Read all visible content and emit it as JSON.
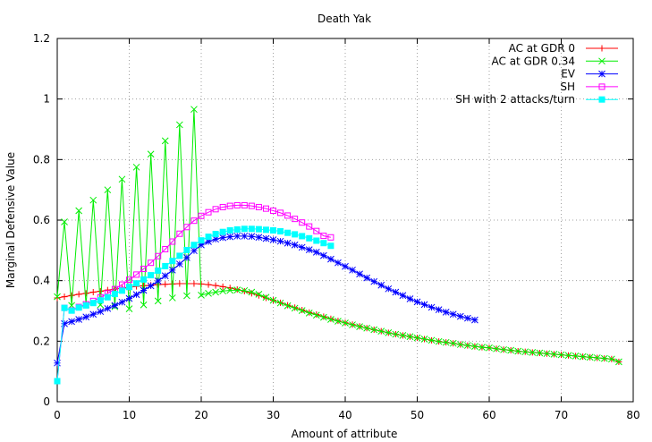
{
  "chart_data": {
    "type": "line",
    "title": "Death Yak",
    "xlabel": "Amount of attribute",
    "ylabel": "Marginal Defensive Value",
    "xlim": [
      0,
      80
    ],
    "ylim": [
      0,
      1.2
    ],
    "xticks": [
      "0",
      "10",
      "20",
      "30",
      "40",
      "50",
      "60",
      "70",
      "80"
    ],
    "yticks": [
      "0",
      "0.2",
      "0.4",
      "0.6",
      "0.8",
      "1",
      "1.2"
    ],
    "grid": true,
    "legend_position": "top-right",
    "series": [
      {
        "name": "AC at GDR 0",
        "color": "#ff0000",
        "marker": "plus",
        "x": [
          0,
          1,
          2,
          3,
          4,
          5,
          6,
          7,
          8,
          9,
          10,
          11,
          12,
          13,
          14,
          15,
          16,
          17,
          18,
          19,
          20,
          21,
          22,
          23,
          24,
          25,
          26,
          27,
          28,
          29,
          30,
          31,
          32,
          33,
          34,
          35,
          36,
          37,
          38,
          39,
          40,
          41,
          42,
          43,
          44,
          45,
          46,
          47,
          48,
          49,
          50,
          51,
          52,
          53,
          54,
          55,
          56,
          57,
          58,
          59,
          60,
          61,
          62,
          63,
          64,
          65,
          66,
          67,
          68,
          69,
          70,
          71,
          72,
          73,
          74,
          75,
          76,
          77,
          78
        ],
        "y": [
          0.343,
          0.347,
          0.351,
          0.355,
          0.358,
          0.362,
          0.365,
          0.369,
          0.372,
          0.375,
          0.378,
          0.381,
          0.383,
          0.385,
          0.387,
          0.388,
          0.389,
          0.39,
          0.39,
          0.39,
          0.389,
          0.387,
          0.384,
          0.38,
          0.376,
          0.371,
          0.365,
          0.358,
          0.351,
          0.343,
          0.335,
          0.327,
          0.319,
          0.311,
          0.303,
          0.295,
          0.288,
          0.281,
          0.274,
          0.267,
          0.261,
          0.255,
          0.249,
          0.243,
          0.238,
          0.233,
          0.228,
          0.223,
          0.219,
          0.215,
          0.211,
          0.207,
          0.203,
          0.199,
          0.196,
          0.193,
          0.189,
          0.186,
          0.183,
          0.18,
          0.178,
          0.175,
          0.172,
          0.17,
          0.167,
          0.165,
          0.163,
          0.161,
          0.159,
          0.157,
          0.155,
          0.153,
          0.151,
          0.149,
          0.147,
          0.145,
          0.143,
          0.141,
          0.132
        ]
      },
      {
        "name": "AC at GDR 0.34",
        "color": "#00ee00",
        "marker": "cross",
        "x": [
          0,
          1,
          2,
          3,
          4,
          5,
          6,
          7,
          8,
          9,
          10,
          11,
          12,
          13,
          14,
          15,
          16,
          17,
          18,
          19,
          20,
          21,
          22,
          23,
          24,
          25,
          26,
          27,
          28,
          29,
          30,
          31,
          32,
          33,
          34,
          35,
          36,
          37,
          38,
          39,
          40,
          41,
          42,
          43,
          44,
          45,
          46,
          47,
          48,
          49,
          50,
          51,
          52,
          53,
          54,
          55,
          56,
          57,
          58,
          59,
          60,
          61,
          62,
          63,
          64,
          65,
          66,
          67,
          68,
          69,
          70,
          71,
          72,
          73,
          74,
          75,
          76,
          77,
          78
        ],
        "y": [
          0.347,
          0.594,
          0.318,
          0.631,
          0.32,
          0.666,
          0.32,
          0.7,
          0.314,
          0.735,
          0.307,
          0.775,
          0.32,
          0.818,
          0.333,
          0.862,
          0.343,
          0.915,
          0.35,
          0.966,
          0.352,
          0.358,
          0.362,
          0.366,
          0.368,
          0.369,
          0.367,
          0.362,
          0.355,
          0.345,
          0.335,
          0.326,
          0.317,
          0.309,
          0.301,
          0.293,
          0.286,
          0.279,
          0.272,
          0.266,
          0.26,
          0.254,
          0.248,
          0.243,
          0.238,
          0.233,
          0.228,
          0.223,
          0.219,
          0.215,
          0.211,
          0.207,
          0.203,
          0.199,
          0.196,
          0.193,
          0.189,
          0.186,
          0.183,
          0.18,
          0.178,
          0.175,
          0.172,
          0.17,
          0.167,
          0.165,
          0.163,
          0.161,
          0.159,
          0.157,
          0.155,
          0.153,
          0.151,
          0.149,
          0.147,
          0.145,
          0.143,
          0.141,
          0.132
        ]
      },
      {
        "name": "EV",
        "color": "#0000ff",
        "marker": "star",
        "x": [
          0,
          1,
          2,
          3,
          4,
          5,
          6,
          7,
          8,
          9,
          10,
          11,
          12,
          13,
          14,
          15,
          16,
          17,
          18,
          19,
          20,
          21,
          22,
          23,
          24,
          25,
          26,
          27,
          28,
          29,
          30,
          31,
          32,
          33,
          34,
          35,
          36,
          37,
          38,
          39,
          40,
          41,
          42,
          43,
          44,
          45,
          46,
          47,
          48,
          49,
          50,
          51,
          52,
          53,
          54,
          55,
          56,
          57,
          58
        ],
        "y": [
          0.128,
          0.258,
          0.265,
          0.272,
          0.28,
          0.289,
          0.298,
          0.308,
          0.318,
          0.329,
          0.341,
          0.354,
          0.368,
          0.383,
          0.399,
          0.416,
          0.435,
          0.455,
          0.476,
          0.499,
          0.518,
          0.529,
          0.537,
          0.542,
          0.545,
          0.547,
          0.547,
          0.546,
          0.543,
          0.539,
          0.535,
          0.53,
          0.524,
          0.518,
          0.51,
          0.502,
          0.494,
          0.483,
          0.471,
          0.459,
          0.447,
          0.435,
          0.422,
          0.409,
          0.397,
          0.385,
          0.373,
          0.362,
          0.351,
          0.34,
          0.33,
          0.321,
          0.312,
          0.304,
          0.296,
          0.289,
          0.282,
          0.276,
          0.27
        ]
      },
      {
        "name": "SH",
        "color": "#ff00ff",
        "marker": "open-square",
        "x": [
          0,
          1,
          2,
          3,
          4,
          5,
          6,
          7,
          8,
          9,
          10,
          11,
          12,
          13,
          14,
          15,
          16,
          17,
          18,
          19,
          20,
          21,
          22,
          23,
          24,
          25,
          26,
          27,
          28,
          29,
          30,
          31,
          32,
          33,
          34,
          35,
          36,
          37,
          38
        ],
        "y": [
          0.068,
          0.31,
          0.302,
          0.313,
          0.322,
          0.333,
          0.345,
          0.358,
          0.372,
          0.387,
          0.403,
          0.42,
          0.439,
          0.459,
          0.481,
          0.504,
          0.529,
          0.555,
          0.577,
          0.598,
          0.614,
          0.626,
          0.636,
          0.643,
          0.647,
          0.649,
          0.649,
          0.647,
          0.643,
          0.638,
          0.631,
          0.624,
          0.615,
          0.604,
          0.592,
          0.579,
          0.564,
          0.548,
          0.543
        ]
      },
      {
        "name": "SH with 2 attacks/turn",
        "color": "#00ffff",
        "marker": "filled-square",
        "x": [
          0,
          1,
          2,
          3,
          4,
          5,
          6,
          7,
          8,
          9,
          10,
          11,
          12,
          13,
          14,
          15,
          16,
          17,
          18,
          19,
          20,
          21,
          22,
          23,
          24,
          25,
          26,
          27,
          28,
          29,
          30,
          31,
          32,
          33,
          34,
          35,
          36,
          37,
          38
        ],
        "y": [
          0.068,
          0.31,
          0.301,
          0.311,
          0.318,
          0.326,
          0.335,
          0.345,
          0.356,
          0.367,
          0.379,
          0.391,
          0.404,
          0.418,
          0.433,
          0.448,
          0.465,
          0.482,
          0.501,
          0.518,
          0.533,
          0.545,
          0.554,
          0.561,
          0.566,
          0.569,
          0.571,
          0.571,
          0.57,
          0.568,
          0.566,
          0.563,
          0.558,
          0.553,
          0.547,
          0.54,
          0.532,
          0.524,
          0.515
        ]
      }
    ]
  }
}
